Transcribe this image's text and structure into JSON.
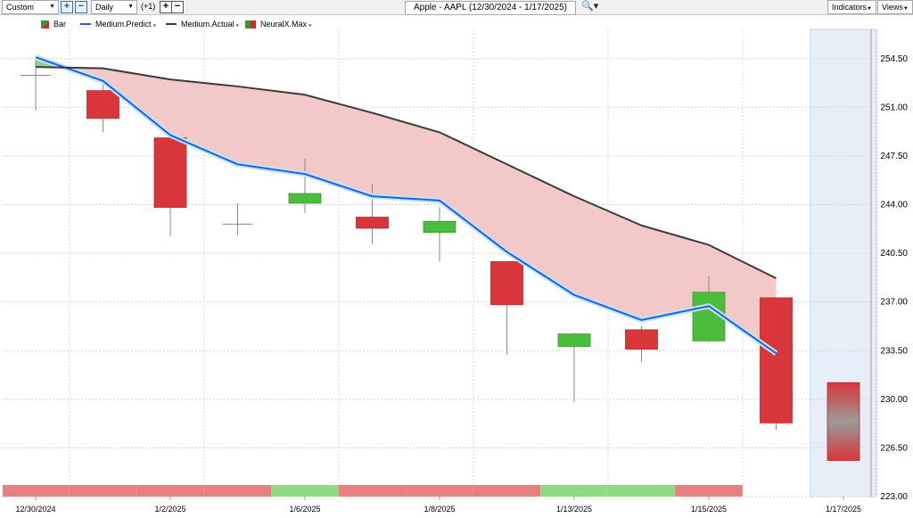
{
  "toolbar": {
    "preset": "Custom",
    "interval": "Daily",
    "offset_label": "(+1)",
    "title": "Apple - AAPL (12/30/2024 - 1/17/2025)",
    "indicators_label": "Indicators",
    "views_label": "Views"
  },
  "chart_data": {
    "type": "candlestick",
    "yticks": [
      223.0,
      226.5,
      230.0,
      233.5,
      237.0,
      240.5,
      244.0,
      247.5,
      251.0,
      254.5
    ],
    "ytick_labels": [
      "223.00",
      "226.50",
      "230.00",
      "233.50",
      "237.00",
      "240.50",
      "244.00",
      "247.50",
      "251.00",
      "254.50"
    ],
    "ylim": [
      223.0,
      256.6
    ],
    "x_labels": [
      {
        "i": 0,
        "text": "12/30/2024"
      },
      {
        "i": 2,
        "text": "1/2/2025"
      },
      {
        "i": 4,
        "text": "1/6/2025"
      },
      {
        "i": 6,
        "text": "1/8/2025"
      },
      {
        "i": 8,
        "text": "1/13/2025"
      },
      {
        "i": 10,
        "text": "1/15/2025"
      },
      {
        "i": 12,
        "text": "1/17/2025"
      }
    ],
    "legend": [
      {
        "name": "Bar",
        "color": "#2e9d2e",
        "color2": "#d42a2a"
      },
      {
        "name": "Medium.Predict",
        "color": "#1e5fe6"
      },
      {
        "name": "Medium.Actual",
        "color": "#3a3a3a"
      },
      {
        "name": "NeuralX.Max",
        "color": "#2e9d2e",
        "color2": "#d42a2a"
      }
    ],
    "bars": [
      {
        "o": 253.3,
        "h": 254.4,
        "l": 250.8,
        "c": 253.3
      },
      {
        "o": 252.2,
        "h": 253.0,
        "l": 249.2,
        "c": 250.2
      },
      {
        "o": 248.8,
        "h": 248.8,
        "l": 241.7,
        "c": 243.8
      },
      {
        "o": 242.6,
        "h": 244.1,
        "l": 241.8,
        "c": 242.6
      },
      {
        "o": 244.1,
        "h": 247.3,
        "l": 243.4,
        "c": 244.8
      },
      {
        "o": 243.1,
        "h": 245.5,
        "l": 241.2,
        "c": 242.3
      },
      {
        "o": 242.0,
        "h": 243.8,
        "l": 239.9,
        "c": 242.8
      },
      {
        "o": 239.9,
        "h": 239.9,
        "l": 233.2,
        "c": 236.8
      },
      {
        "o": 233.8,
        "h": 234.8,
        "l": 229.8,
        "c": 234.7
      },
      {
        "o": 235.0,
        "h": 235.3,
        "l": 232.7,
        "c": 233.6
      },
      {
        "o": 234.2,
        "h": 238.9,
        "l": 234.1,
        "c": 237.7
      },
      {
        "o": 237.3,
        "h": 237.3,
        "l": 227.8,
        "c": 228.3
      }
    ],
    "forecast_bar": {
      "i": 12,
      "high": 231.2,
      "low": 225.6
    },
    "medium_predict": [
      254.6,
      252.9,
      249.0,
      246.9,
      246.2,
      244.6,
      244.3,
      240.6,
      237.5,
      235.7,
      236.7,
      233.3
    ],
    "medium_actual": [
      253.9,
      253.8,
      253.0,
      252.5,
      251.9,
      250.6,
      249.2,
      246.9,
      244.6,
      242.5,
      241.1,
      238.7
    ],
    "neural_strip": [
      "red",
      "red",
      "red",
      "red",
      "green",
      "red",
      "red",
      "red",
      "green",
      "green",
      "red"
    ],
    "colors": {
      "up": "#4cbc3c",
      "down": "#d9363b",
      "band": "#f2c2c3",
      "strip_red": "#e88081",
      "strip_green": "#92d983",
      "forecast_bg": "#e8eef7",
      "grid": "#d8d8d8"
    }
  }
}
